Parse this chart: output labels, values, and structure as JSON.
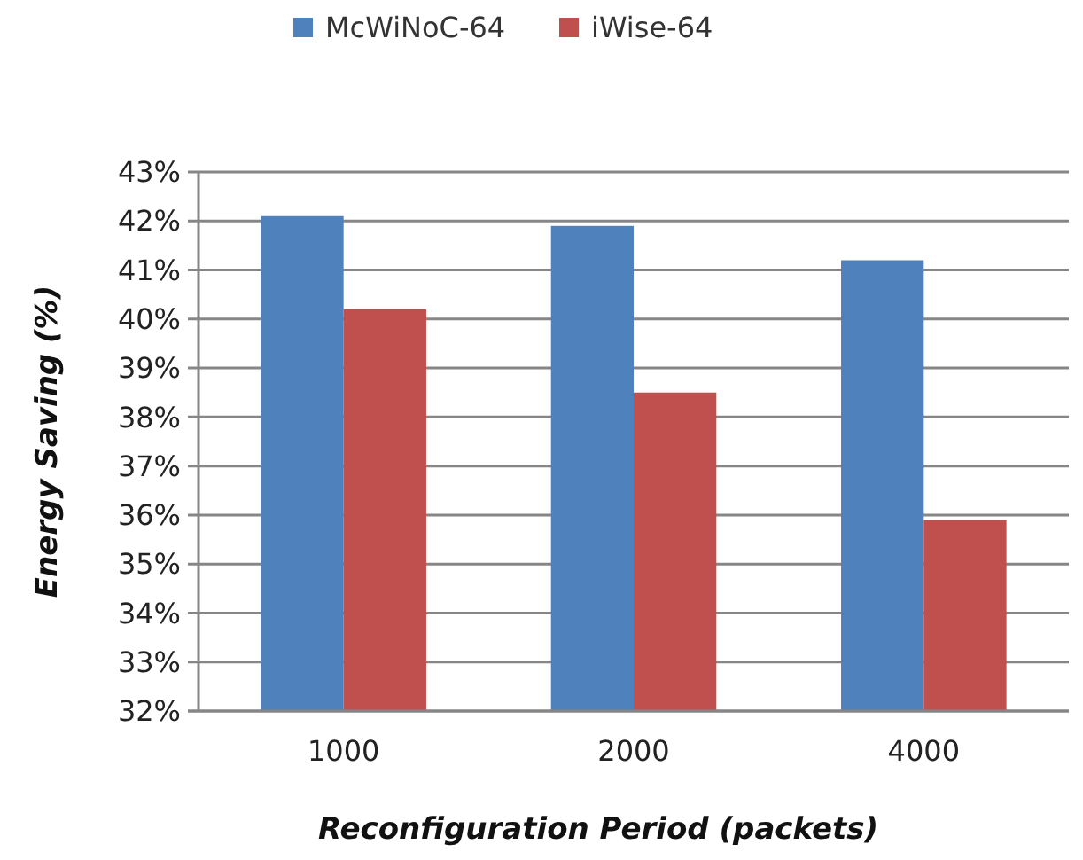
{
  "chart_data": {
    "type": "bar",
    "xlabel": "Reconfiguration Period (packets)",
    "ylabel": "Energy Saving (%)",
    "categories": [
      "1000",
      "2000",
      "4000"
    ],
    "series": [
      {
        "name": "McWiNoC-64",
        "color": "#4f81bd",
        "values": [
          42.1,
          41.9,
          41.2
        ]
      },
      {
        "name": "iWise-64",
        "color": "#c0504d",
        "values": [
          40.2,
          38.5,
          35.9
        ]
      }
    ],
    "ylim": [
      32,
      43
    ],
    "yticks": [
      {
        "value": 32,
        "label": "32%"
      },
      {
        "value": 33,
        "label": "33%"
      },
      {
        "value": 34,
        "label": "34%"
      },
      {
        "value": 35,
        "label": "35%"
      },
      {
        "value": 36,
        "label": "36%"
      },
      {
        "value": 37,
        "label": "37%"
      },
      {
        "value": 38,
        "label": "38%"
      },
      {
        "value": 39,
        "label": "39%"
      },
      {
        "value": 40,
        "label": "40%"
      },
      {
        "value": 41,
        "label": "41%"
      },
      {
        "value": 42,
        "label": "42%"
      },
      {
        "value": 43,
        "label": "43%"
      }
    ],
    "grid": "y",
    "legend": "top"
  }
}
